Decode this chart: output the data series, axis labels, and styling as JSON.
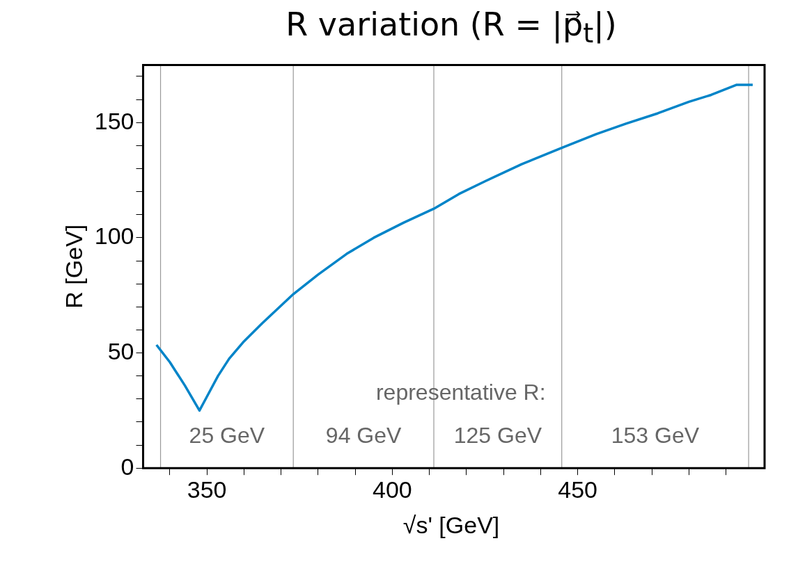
{
  "chart_data": {
    "type": "line",
    "title": "R variation (R = |p⃗$_{t}$|)",
    "xlabel": "√s' [GeV]",
    "ylabel": "R [GeV]",
    "x": [
      336.4,
      340,
      344,
      348,
      350,
      353,
      356,
      360,
      365,
      373.3,
      380,
      387.7,
      395,
      403,
      411.2,
      418,
      425,
      435,
      445.7,
      455,
      463,
      471.6,
      480,
      486,
      492.9,
      497.2
    ],
    "series": [
      {
        "color": "#0084c8",
        "values": [
          53.5,
          46,
          36,
          25,
          31,
          40,
          47.5,
          55,
          63,
          75.5,
          84,
          93,
          100,
          106.5,
          112.6,
          119,
          124.5,
          132,
          139,
          145,
          149.5,
          154,
          159,
          162,
          166.4,
          166.4
        ]
      }
    ],
    "xlim": [
      332.8,
      500.4
    ],
    "ylim": [
      0,
      175
    ],
    "xticks": [
      {
        "value": 340,
        "label": null
      },
      350,
      {
        "value": 360,
        "label": null
      },
      {
        "value": 370,
        "label": null
      },
      {
        "value": 380,
        "label": null
      },
      {
        "value": 390,
        "label": null
      },
      400,
      {
        "value": 410,
        "label": null
      },
      {
        "value": 420,
        "label": null
      },
      {
        "value": 430,
        "label": null
      },
      {
        "value": 440,
        "label": null
      },
      450,
      {
        "value": 460,
        "label": null
      },
      {
        "value": 470,
        "label": null
      },
      {
        "value": 480,
        "label": null
      },
      {
        "value": 490,
        "label": null
      }
    ],
    "yticks": [
      0,
      {
        "value": 10,
        "label": null
      },
      {
        "value": 20,
        "label": null
      },
      {
        "value": 30,
        "label": null
      },
      {
        "value": 40,
        "label": null
      },
      50,
      {
        "value": 60,
        "label": null
      },
      {
        "value": 70,
        "label": null
      },
      {
        "value": 80,
        "label": null
      },
      {
        "value": 90,
        "label": null
      },
      100,
      {
        "value": 110,
        "label": null
      },
      {
        "value": 120,
        "label": null
      },
      {
        "value": 130,
        "label": null
      },
      {
        "value": 140,
        "label": null
      },
      150,
      {
        "value": 160,
        "label": null
      },
      {
        "value": 170,
        "label": null
      }
    ],
    "ref_lines": [
      {
        "axis": "x",
        "value": 337.5,
        "color": "#999999"
      },
      {
        "axis": "x",
        "value": 373.3,
        "color": "#999999"
      },
      {
        "axis": "x",
        "value": 411.2,
        "color": "#999999"
      },
      {
        "axis": "x",
        "value": 445.7,
        "color": "#999999"
      },
      {
        "axis": "x",
        "value": 496.1,
        "color": "#999999"
      }
    ],
    "annotations": [
      "representative R:",
      "25 GeV",
      "94 GeV",
      "125 GeV",
      "153 GeV"
    ],
    "marker": "none",
    "line_style": "solid",
    "grid": false,
    "legend": false
  }
}
